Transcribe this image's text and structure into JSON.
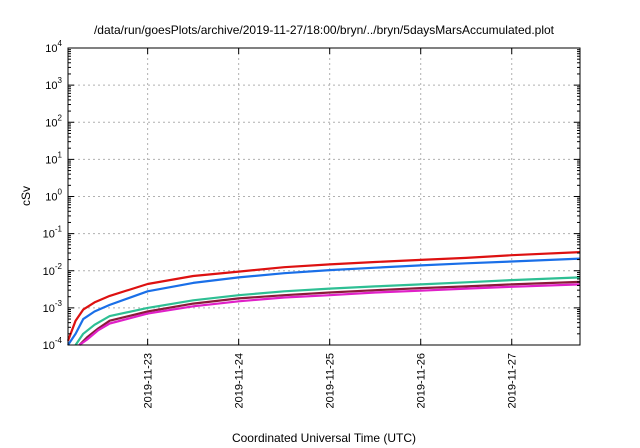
{
  "chart_data": {
    "type": "line",
    "title": "/data/run/goesPlots/archive/2019-11-27/18:00/bryn/../bryn/5daysMarsAccumulated.plot",
    "xlabel": "Coordinated Universal Time (UTC)",
    "ylabel": "cSv",
    "y_scale": "log",
    "ylim": [
      0.0001,
      10000
    ],
    "xlim": [
      "2019-11-22T03:00",
      "2019-11-27T18:00"
    ],
    "grid": true,
    "legend": "none",
    "x_ticks": [
      "2019-11-23",
      "2019-11-24",
      "2019-11-25",
      "2019-11-26",
      "2019-11-27"
    ],
    "y_ticks": [
      {
        "value": 0.0001,
        "base": "10",
        "exp": "-4"
      },
      {
        "value": 0.001,
        "base": "10",
        "exp": "-3"
      },
      {
        "value": 0.01,
        "base": "10",
        "exp": "-2"
      },
      {
        "value": 0.1,
        "base": "10",
        "exp": "-1"
      },
      {
        "value": 1,
        "base": "10",
        "exp": "0"
      },
      {
        "value": 10,
        "base": "10",
        "exp": "1"
      },
      {
        "value": 100,
        "base": "10",
        "exp": "2"
      },
      {
        "value": 1000,
        "base": "10",
        "exp": "3"
      },
      {
        "value": 10000,
        "base": "10",
        "exp": "4"
      }
    ],
    "series": [
      {
        "color": "#dd1111",
        "x": [
          "2019-11-22T03:00",
          "2019-11-22T05:00",
          "2019-11-22T07:00",
          "2019-11-22T10:00",
          "2019-11-22T14:00",
          "2019-11-23T00:00",
          "2019-11-23T12:00",
          "2019-11-24T00:00",
          "2019-11-24T12:00",
          "2019-11-25T00:00",
          "2019-11-25T12:00",
          "2019-11-26T00:00",
          "2019-11-26T12:00",
          "2019-11-27T00:00",
          "2019-11-27T18:00"
        ],
        "y": [
          0.00013,
          0.00045,
          0.0009,
          0.0014,
          0.0021,
          0.0044,
          0.0072,
          0.0095,
          0.0125,
          0.0148,
          0.0172,
          0.0196,
          0.0222,
          0.0262,
          0.0318
        ]
      },
      {
        "color": "#1a6fe8",
        "x": [
          "2019-11-22T03:00",
          "2019-11-22T05:00",
          "2019-11-22T07:00",
          "2019-11-22T10:00",
          "2019-11-22T14:00",
          "2019-11-23T00:00",
          "2019-11-23T12:00",
          "2019-11-24T00:00",
          "2019-11-24T12:00",
          "2019-11-25T00:00",
          "2019-11-25T12:00",
          "2019-11-26T00:00",
          "2019-11-26T12:00",
          "2019-11-27T00:00",
          "2019-11-27T18:00"
        ],
        "y": [
          0.0001,
          0.0002,
          0.0005,
          0.0008,
          0.0012,
          0.0028,
          0.0047,
          0.0066,
          0.0086,
          0.0104,
          0.0121,
          0.0139,
          0.0159,
          0.0178,
          0.0212
        ]
      },
      {
        "color": "#2ebf94",
        "x": [
          "2019-11-22T05:00",
          "2019-11-22T07:00",
          "2019-11-22T10:00",
          "2019-11-22T14:00",
          "2019-11-23T00:00",
          "2019-11-23T12:00",
          "2019-11-24T00:00",
          "2019-11-24T12:00",
          "2019-11-25T00:00",
          "2019-11-25T12:00",
          "2019-11-26T00:00",
          "2019-11-26T12:00",
          "2019-11-27T00:00",
          "2019-11-27T18:00"
        ],
        "y": [
          0.0001,
          0.0002,
          0.00035,
          0.0006,
          0.001,
          0.0016,
          0.0022,
          0.0028,
          0.0033,
          0.0038,
          0.0043,
          0.0049,
          0.0056,
          0.0066
        ]
      },
      {
        "color": "#8b1a3a",
        "x": [
          "2019-11-22T06:00",
          "2019-11-22T08:00",
          "2019-11-22T11:00",
          "2019-11-22T14:00",
          "2019-11-23T00:00",
          "2019-11-23T12:00",
          "2019-11-24T00:00",
          "2019-11-24T12:00",
          "2019-11-25T00:00",
          "2019-11-25T12:00",
          "2019-11-26T00:00",
          "2019-11-26T12:00",
          "2019-11-27T00:00",
          "2019-11-27T18:00"
        ],
        "y": [
          0.0001,
          0.00016,
          0.00028,
          0.00045,
          0.0008,
          0.0013,
          0.0018,
          0.0022,
          0.0026,
          0.003,
          0.0034,
          0.0038,
          0.0043,
          0.005
        ]
      },
      {
        "color": "#e020c8",
        "x": [
          "2019-11-22T06:00",
          "2019-11-22T08:00",
          "2019-11-22T11:00",
          "2019-11-22T14:00",
          "2019-11-23T00:00",
          "2019-11-23T12:00",
          "2019-11-24T00:00",
          "2019-11-24T12:00",
          "2019-11-25T00:00",
          "2019-11-25T12:00",
          "2019-11-26T00:00",
          "2019-11-26T12:00",
          "2019-11-27T00:00",
          "2019-11-27T18:00"
        ],
        "y": [
          0.0001,
          0.00014,
          0.00025,
          0.00038,
          0.0007,
          0.0011,
          0.0015,
          0.0019,
          0.0022,
          0.0026,
          0.0029,
          0.0033,
          0.0037,
          0.0043
        ]
      }
    ]
  }
}
